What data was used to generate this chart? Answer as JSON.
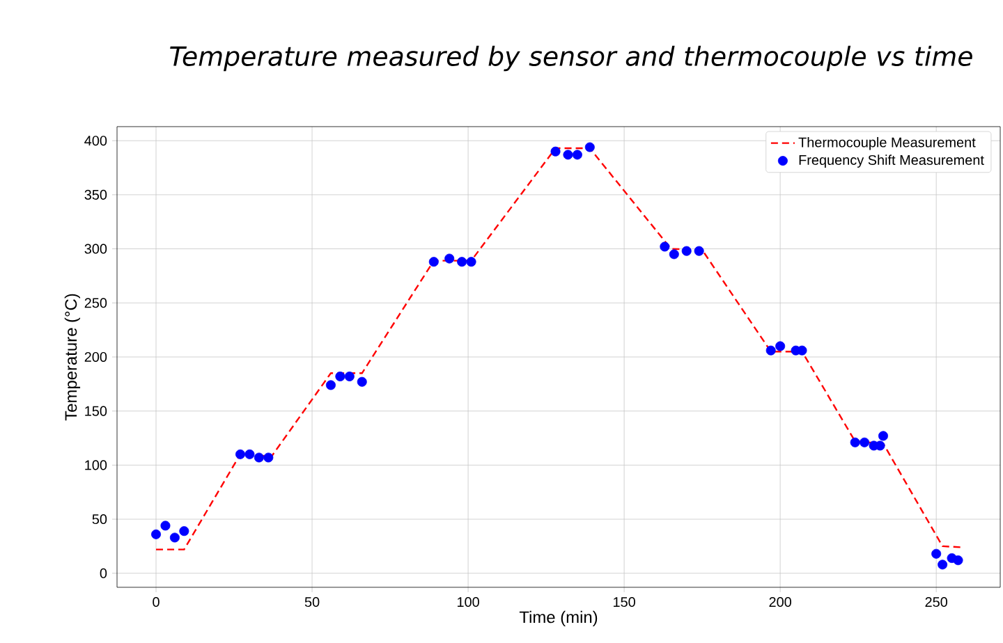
{
  "chart_data": {
    "type": "line",
    "title": "Temperature measured by sensor and thermocouple vs time",
    "xlabel": "Time (min)",
    "ylabel": "Temperature (°C)",
    "xlim": [
      -12.5,
      270.5
    ],
    "ylim": [
      -13,
      413
    ],
    "xticks": [
      0,
      50,
      100,
      150,
      200,
      250
    ],
    "yticks": [
      0,
      50,
      100,
      150,
      200,
      250,
      300,
      350,
      400
    ],
    "grid": true,
    "legend": "top right",
    "series": [
      {
        "name": "Thermocouple Measurement",
        "color": "#ff0000",
        "line_style": "dashed",
        "marker": "none",
        "x": [
          0,
          9,
          27,
          37,
          56,
          66,
          89,
          101,
          128,
          139,
          165,
          175,
          197,
          207,
          224,
          233,
          252,
          258
        ],
        "values": [
          22,
          22,
          110,
          108,
          185,
          185,
          289,
          289,
          393,
          393,
          300,
          299,
          205,
          205,
          122,
          120,
          25,
          24
        ]
      },
      {
        "name": "Frequency Shift Measurement",
        "type": "scatter",
        "color": "#0000ff",
        "marker": "circle",
        "x": [
          0,
          3,
          6,
          9,
          27,
          30,
          33,
          36,
          56,
          59,
          62,
          66,
          89,
          94,
          98,
          101,
          128,
          132,
          135,
          139,
          163,
          166,
          170,
          174,
          197,
          200,
          205,
          207,
          224,
          227,
          230,
          232,
          233,
          250,
          252,
          255,
          257
        ],
        "values": [
          36,
          44,
          33,
          39,
          110,
          110,
          107,
          107,
          174,
          182,
          182,
          177,
          288,
          291,
          288,
          288,
          390,
          387,
          387,
          394,
          302,
          295,
          298,
          298,
          206,
          210,
          206,
          206,
          121,
          121,
          118,
          118,
          127,
          18,
          8,
          14,
          12
        ]
      }
    ]
  }
}
